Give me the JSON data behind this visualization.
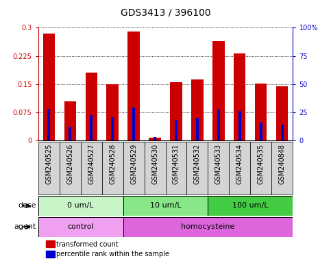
{
  "title": "GDS3413 / 396100",
  "samples": [
    "GSM240525",
    "GSM240526",
    "GSM240527",
    "GSM240528",
    "GSM240529",
    "GSM240530",
    "GSM240531",
    "GSM240532",
    "GSM240533",
    "GSM240534",
    "GSM240535",
    "GSM240848"
  ],
  "transformed_count": [
    0.285,
    0.105,
    0.18,
    0.15,
    0.29,
    0.008,
    0.155,
    0.162,
    0.265,
    0.232,
    0.152,
    0.145
  ],
  "percentile_rank_val": [
    0.085,
    0.038,
    0.068,
    0.063,
    0.088,
    0.01,
    0.055,
    0.06,
    0.082,
    0.079,
    0.048,
    0.042
  ],
  "dose_groups": [
    {
      "label": "0 um/L",
      "start": 0,
      "end": 4,
      "color": "#c8f5c8"
    },
    {
      "label": "10 um/L",
      "start": 4,
      "end": 8,
      "color": "#88e888"
    },
    {
      "label": "100 um/L",
      "start": 8,
      "end": 12,
      "color": "#44cc44"
    }
  ],
  "agent_groups": [
    {
      "label": "control",
      "start": 0,
      "end": 4,
      "color": "#f0a0f0"
    },
    {
      "label": "homocysteine",
      "start": 4,
      "end": 12,
      "color": "#dd66dd"
    }
  ],
  "left_ylim": [
    0,
    0.3
  ],
  "right_ylim": [
    0,
    100
  ],
  "left_yticks": [
    0,
    0.075,
    0.15,
    0.225,
    0.3
  ],
  "left_yticklabels": [
    "0",
    "0.075",
    "0.15",
    "0.225",
    "0.3"
  ],
  "right_yticks": [
    0,
    25,
    50,
    75,
    100
  ],
  "right_yticklabels": [
    "0",
    "25",
    "50",
    "75",
    "100%"
  ],
  "bar_color": "#cc0000",
  "percentile_color": "#0000cc",
  "background_color": "#ffffff",
  "title_fontsize": 10,
  "tick_fontsize": 7,
  "label_fontsize": 8,
  "small_fontsize": 7
}
